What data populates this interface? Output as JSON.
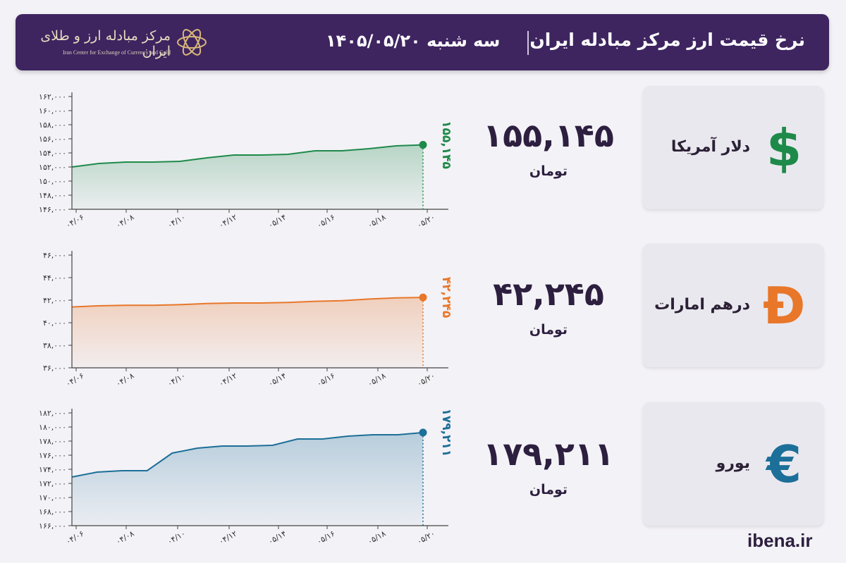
{
  "header": {
    "title": "نرخ قیمت ارز مرکز مبادله ایران",
    "day": "سه شنبه  ۱۴۰۵/۰۵/۲۰",
    "logo_name": "مرکز مبادله ارز و طلای ایران",
    "logo_sub": "Iran Center for Exchange of Currency and Gold"
  },
  "site": "ibena.ir",
  "unit_label": "تومان",
  "cards": [
    {
      "name": "دلار آمریکا",
      "value": "۱۵۵,۱۴۵",
      "icon": "dollar-icon",
      "symbol": "$",
      "color": "#1e8a4a"
    },
    {
      "name": "درهم امارات",
      "value": "۴۲,۲۴۵",
      "icon": "dirham-icon",
      "symbol": "Đ",
      "color": "#e8772a"
    },
    {
      "name": "یورو",
      "value": "۱۷۹,۲۱۱",
      "icon": "euro-icon",
      "symbol": "€",
      "color": "#1c6f98"
    }
  ],
  "chart_data": [
    {
      "type": "area",
      "currency": "dollar",
      "color": "#1e8a4a",
      "end_label": "۱۵۵,۱۴۵",
      "x_ticks": [
        "۰۴/۰۶",
        "۰۴/۰۸",
        "۰۴/۱۰",
        "۰۴/۱۲",
        "۰۵/۱۴",
        "۰۵/۱۶",
        "۰۵/۱۸",
        "۰۵/۲۰"
      ],
      "y_ticks": [
        "۱۴۶,۰۰۰",
        "۱۴۸,۰۰۰",
        "۱۵۰,۰۰۰",
        "۱۵۲,۰۰۰",
        "۱۵۴,۰۰۰",
        "۱۵۶,۰۰۰",
        "۱۵۸,۰۰۰",
        "۱۶۰,۰۰۰",
        "۱۶۲,۰۰۰"
      ],
      "ylim": [
        146000,
        162000
      ],
      "values": [
        152000,
        152500,
        152700,
        152700,
        152800,
        153300,
        153700,
        153700,
        153800,
        154300,
        154300,
        154600,
        155000,
        155145
      ]
    },
    {
      "type": "area",
      "currency": "dirham",
      "color": "#e8772a",
      "end_label": "۴۲,۲۴۵",
      "x_ticks": [
        "۰۴/۰۶",
        "۰۴/۰۸",
        "۰۴/۱۰",
        "۰۴/۱۲",
        "۰۵/۱۴",
        "۰۵/۱۶",
        "۰۵/۱۸",
        "۰۵/۲۰"
      ],
      "y_ticks": [
        "۳۶,۰۰۰",
        "۳۸,۰۰۰",
        "۴۰,۰۰۰",
        "۴۲,۰۰۰",
        "۴۴,۰۰۰",
        "۴۶,۰۰۰"
      ],
      "ylim": [
        36000,
        46000
      ],
      "values": [
        41400,
        41500,
        41550,
        41550,
        41600,
        41700,
        41750,
        41750,
        41800,
        41900,
        41950,
        42100,
        42200,
        42245
      ]
    },
    {
      "type": "area",
      "currency": "euro",
      "color": "#1c6f98",
      "end_label": "۱۷۹,۲۱۱",
      "x_ticks": [
        "۰۴/۰۶",
        "۰۴/۰۸",
        "۰۴/۱۰",
        "۰۴/۱۲",
        "۰۵/۱۴",
        "۰۵/۱۶",
        "۰۵/۱۸",
        "۰۵/۲۰"
      ],
      "y_ticks": [
        "۱۶۶,۰۰۰",
        "۱۶۸,۰۰۰",
        "۱۷۰,۰۰۰",
        "۱۷۲,۰۰۰",
        "۱۷۴,۰۰۰",
        "۱۷۶,۰۰۰",
        "۱۷۸,۰۰۰",
        "۱۸۰,۰۰۰",
        "۱۸۲,۰۰۰"
      ],
      "ylim": [
        166000,
        182000
      ],
      "values": [
        172900,
        173600,
        173800,
        173800,
        176300,
        177000,
        177300,
        177300,
        177400,
        178300,
        178300,
        178700,
        178900,
        178900,
        179211
      ]
    }
  ]
}
